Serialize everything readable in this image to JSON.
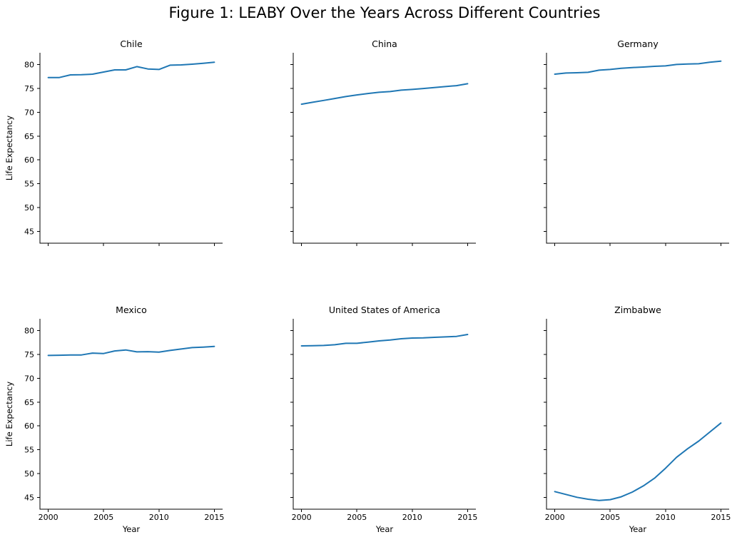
{
  "chart_data": {
    "type": "line",
    "title": "Figure 1: LEABY Over the Years Across Different Countries",
    "x": [
      2000,
      2001,
      2002,
      2003,
      2004,
      2005,
      2006,
      2007,
      2008,
      2009,
      2010,
      2011,
      2012,
      2013,
      2014,
      2015
    ],
    "series": [
      {
        "name": "Chile",
        "values": [
          77.3,
          77.3,
          77.85,
          77.9,
          78.0,
          78.45,
          78.9,
          78.9,
          79.6,
          79.1,
          79.0,
          79.9,
          79.95,
          80.1,
          80.3,
          80.5
        ]
      },
      {
        "name": "China",
        "values": [
          71.7,
          72.1,
          72.5,
          72.9,
          73.3,
          73.65,
          73.95,
          74.2,
          74.35,
          74.65,
          74.8,
          75.0,
          75.2,
          75.4,
          75.6,
          76.0
        ]
      },
      {
        "name": "Germany",
        "values": [
          78.0,
          78.25,
          78.3,
          78.4,
          78.85,
          79.0,
          79.25,
          79.4,
          79.5,
          79.65,
          79.75,
          80.05,
          80.15,
          80.2,
          80.5,
          80.75
        ]
      },
      {
        "name": "Mexico",
        "values": [
          74.8,
          74.85,
          74.9,
          74.9,
          75.3,
          75.2,
          75.75,
          75.95,
          75.55,
          75.6,
          75.5,
          75.85,
          76.15,
          76.45,
          76.55,
          76.7
        ]
      },
      {
        "name": "United States of America",
        "values": [
          76.8,
          76.85,
          76.9,
          77.05,
          77.35,
          77.35,
          77.6,
          77.85,
          78.05,
          78.3,
          78.45,
          78.5,
          78.6,
          78.7,
          78.8,
          79.2
        ]
      },
      {
        "name": "Zimbabwe",
        "values": [
          46.2,
          45.6,
          45.0,
          44.6,
          44.35,
          44.5,
          45.1,
          46.1,
          47.4,
          49.0,
          51.1,
          53.4,
          55.2,
          56.8,
          58.7,
          60.6
        ]
      }
    ],
    "xlabel": "Year",
    "ylabel": "Life Expectancy",
    "xticks": [
      2000,
      2005,
      2010,
      2015
    ],
    "yticks": [
      45,
      50,
      55,
      60,
      65,
      70,
      75,
      80
    ],
    "xlim": [
      1999.25,
      2015.75
    ],
    "ylim": [
      42.5,
      82.5
    ],
    "grid": false,
    "legend": "none",
    "layout": {
      "rows": 2,
      "cols": 3,
      "sharex": true,
      "sharey": true
    },
    "spines": [
      "left",
      "bottom"
    ],
    "line_color": "#1f77b4",
    "spine_color": "#000000",
    "text_color": "#000000"
  }
}
